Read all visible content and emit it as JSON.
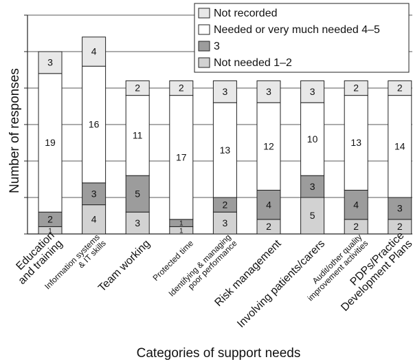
{
  "chart_data": {
    "type": "stacked_bar",
    "y_label": "Number of responses",
    "x_label": "Categories of support needs",
    "categories": [
      "Education\nand training",
      "Information systems\n& IT skills",
      "Team working",
      "Protected time",
      "Identifying & managing\npoor performance",
      "Risk management",
      "Involving patients/carers",
      "Audit/other quality\nimprovement activities",
      "PDPs/Practice\nDevelopment Plans"
    ],
    "series": [
      {
        "name": "Not needed 1–2",
        "color": "#d2d2d2",
        "values": [
          1,
          4,
          3,
          1,
          3,
          2,
          5,
          2,
          2
        ]
      },
      {
        "name": "3",
        "color": "#9c9c9c",
        "values": [
          2,
          3,
          5,
          1,
          2,
          4,
          3,
          4,
          3
        ]
      },
      {
        "name": "Needed or very much needed 4–5",
        "color": "#ffffff",
        "values": [
          19,
          16,
          11,
          17,
          13,
          12,
          10,
          13,
          14
        ]
      },
      {
        "name": "Not recorded",
        "color": "#e8e8e8",
        "values": [
          3,
          4,
          2,
          2,
          3,
          3,
          3,
          2,
          2
        ]
      }
    ],
    "ylim": [
      0,
      30
    ],
    "yticks": [
      0,
      5,
      10,
      15,
      20,
      25,
      30
    ],
    "grid": true,
    "legend": "top-right"
  }
}
